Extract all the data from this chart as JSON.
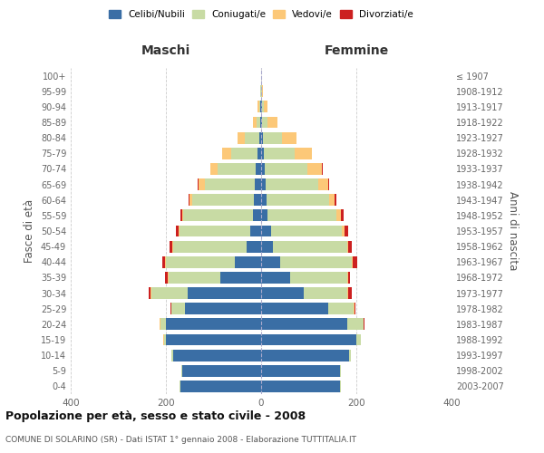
{
  "age_groups": [
    "0-4",
    "5-9",
    "10-14",
    "15-19",
    "20-24",
    "25-29",
    "30-34",
    "35-39",
    "40-44",
    "45-49",
    "50-54",
    "55-59",
    "60-64",
    "65-69",
    "70-74",
    "75-79",
    "80-84",
    "85-89",
    "90-94",
    "95-99",
    "100+"
  ],
  "birth_years": [
    "2003-2007",
    "1998-2002",
    "1993-1997",
    "1988-1992",
    "1983-1987",
    "1978-1982",
    "1973-1977",
    "1968-1972",
    "1963-1967",
    "1958-1962",
    "1953-1957",
    "1948-1952",
    "1943-1947",
    "1938-1942",
    "1933-1937",
    "1928-1932",
    "1923-1927",
    "1918-1922",
    "1913-1917",
    "1908-1912",
    "≤ 1907"
  ],
  "maschi": {
    "celibi": [
      170,
      165,
      185,
      200,
      200,
      160,
      155,
      85,
      55,
      30,
      22,
      18,
      15,
      14,
      12,
      8,
      4,
      2,
      1,
      0,
      0
    ],
    "coniugati": [
      2,
      2,
      3,
      4,
      12,
      28,
      75,
      110,
      145,
      155,
      150,
      145,
      130,
      105,
      80,
      55,
      30,
      8,
      3,
      1,
      0
    ],
    "vedovi": [
      0,
      0,
      0,
      1,
      1,
      1,
      2,
      2,
      2,
      2,
      2,
      2,
      5,
      12,
      15,
      18,
      15,
      8,
      3,
      1,
      0
    ],
    "divorziati": [
      0,
      0,
      0,
      0,
      1,
      2,
      4,
      4,
      5,
      5,
      5,
      4,
      3,
      2,
      0,
      0,
      0,
      0,
      0,
      0,
      0
    ]
  },
  "femmine": {
    "nubili": [
      165,
      165,
      185,
      200,
      180,
      140,
      90,
      60,
      40,
      25,
      20,
      14,
      12,
      10,
      8,
      6,
      4,
      2,
      1,
      0,
      0
    ],
    "coniugate": [
      2,
      2,
      4,
      10,
      35,
      55,
      90,
      120,
      150,
      155,
      150,
      145,
      130,
      110,
      90,
      65,
      40,
      12,
      4,
      1,
      0
    ],
    "vedove": [
      0,
      0,
      0,
      0,
      1,
      1,
      2,
      2,
      2,
      3,
      5,
      8,
      12,
      20,
      30,
      35,
      30,
      20,
      8,
      3,
      0
    ],
    "divorziate": [
      0,
      0,
      0,
      0,
      1,
      2,
      8,
      5,
      10,
      8,
      8,
      6,
      5,
      2,
      2,
      0,
      0,
      0,
      0,
      0,
      0
    ]
  },
  "colors": {
    "celibi_nubili": "#3a6ea5",
    "coniugati": "#c8dba4",
    "vedovi": "#fcc878",
    "divorziati": "#cc2020"
  },
  "xlim": 400,
  "title": "Popolazione per età, sesso e stato civile - 2008",
  "subtitle": "COMUNE DI SOLARINO (SR) - Dati ISTAT 1° gennaio 2008 - Elaborazione TUTTITALIA.IT",
  "ylabel_left": "Fasce di età",
  "ylabel_right": "Anni di nascita",
  "legend_labels": [
    "Celibi/Nubili",
    "Coniugati/e",
    "Vedovi/e",
    "Divorziati/e"
  ],
  "background_color": "#ffffff",
  "grid_color": "#cccccc",
  "maschi_label": "Maschi",
  "femmine_label": "Femmine"
}
